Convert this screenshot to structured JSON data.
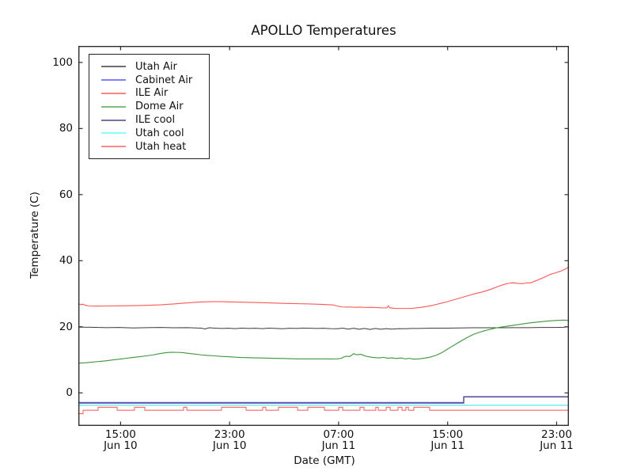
{
  "chart_data": {
    "type": "line",
    "title": "APOLLO Temperatures",
    "xlabel": "Date (GMT)",
    "ylabel": "Temperature (C)",
    "xlim_hours": [
      0,
      36
    ],
    "x_axis_origin": "Jun 10 ~12:00 GMT",
    "ylim": [
      -10,
      105
    ],
    "yticks": [
      0,
      20,
      40,
      60,
      80,
      100
    ],
    "xticks": [
      {
        "h": 3.1,
        "time": "15:00",
        "date": "Jun 10"
      },
      {
        "h": 11.1,
        "time": "23:00",
        "date": "Jun 10"
      },
      {
        "h": 19.1,
        "time": "07:00",
        "date": "Jun 11"
      },
      {
        "h": 27.1,
        "time": "15:00",
        "date": "Jun 11"
      },
      {
        "h": 35.1,
        "time": "23:00",
        "date": "Jun 11"
      }
    ],
    "grid": false,
    "legend_position": "upper left",
    "series": [
      {
        "name": "Utah Air",
        "color": "#3a3a3a",
        "swatch": "#6e6e6e",
        "width": 1.0,
        "points": [
          [
            0,
            19.9
          ],
          [
            1,
            19.85
          ],
          [
            2,
            19.75
          ],
          [
            3,
            19.8
          ],
          [
            4,
            19.65
          ],
          [
            5,
            19.75
          ],
          [
            6,
            19.8
          ],
          [
            7,
            19.7
          ],
          [
            8,
            19.75
          ],
          [
            9,
            19.6
          ],
          [
            9.3,
            19.35
          ],
          [
            9.6,
            19.7
          ],
          [
            10,
            19.6
          ],
          [
            10.5,
            19.5
          ],
          [
            11,
            19.55
          ],
          [
            11.5,
            19.45
          ],
          [
            12,
            19.6
          ],
          [
            12.5,
            19.5
          ],
          [
            13,
            19.55
          ],
          [
            13.5,
            19.45
          ],
          [
            14,
            19.6
          ],
          [
            14.5,
            19.5
          ],
          [
            15,
            19.4
          ],
          [
            15.5,
            19.55
          ],
          [
            16,
            19.5
          ],
          [
            16.5,
            19.6
          ],
          [
            17,
            19.55
          ],
          [
            17.5,
            19.5
          ],
          [
            18,
            19.55
          ],
          [
            18.5,
            19.45
          ],
          [
            19,
            19.4
          ],
          [
            19.4,
            19.6
          ],
          [
            19.8,
            19.3
          ],
          [
            20.2,
            19.55
          ],
          [
            20.6,
            19.25
          ],
          [
            21,
            19.5
          ],
          [
            21.4,
            19.2
          ],
          [
            21.8,
            19.5
          ],
          [
            22.2,
            19.25
          ],
          [
            22.6,
            19.45
          ],
          [
            23,
            19.3
          ],
          [
            23.5,
            19.45
          ],
          [
            24,
            19.4
          ],
          [
            24.5,
            19.5
          ],
          [
            25,
            19.5
          ],
          [
            26,
            19.6
          ],
          [
            27,
            19.6
          ],
          [
            28,
            19.65
          ],
          [
            29,
            19.7
          ],
          [
            30,
            19.7
          ],
          [
            31,
            19.7
          ],
          [
            32,
            19.75
          ],
          [
            33,
            19.75
          ],
          [
            34,
            19.8
          ],
          [
            35,
            19.8
          ],
          [
            35.6,
            19.85
          ],
          [
            36,
            20.0
          ]
        ]
      },
      {
        "name": "Cabinet Air",
        "color": "#6b6bff",
        "swatch": "#8080ff",
        "width": 1.2,
        "points": [
          [
            0,
            -2.9
          ],
          [
            28.28,
            -2.9
          ],
          [
            28.28,
            -1.15
          ],
          [
            36,
            -1.15
          ]
        ]
      },
      {
        "name": "ILE Air",
        "color": "#ff5757",
        "swatch": "#ff8585",
        "width": 1.1,
        "points": [
          [
            0,
            27.0
          ],
          [
            0.2,
            26.7
          ],
          [
            0.35,
            26.85
          ],
          [
            0.5,
            26.5
          ],
          [
            0.8,
            26.3
          ],
          [
            1.2,
            26.25
          ],
          [
            2,
            26.3
          ],
          [
            3,
            26.35
          ],
          [
            4,
            26.4
          ],
          [
            5,
            26.5
          ],
          [
            6,
            26.65
          ],
          [
            7,
            26.9
          ],
          [
            8,
            27.25
          ],
          [
            9,
            27.5
          ],
          [
            9.8,
            27.6
          ],
          [
            10.5,
            27.6
          ],
          [
            11,
            27.55
          ],
          [
            12,
            27.45
          ],
          [
            13,
            27.35
          ],
          [
            14,
            27.25
          ],
          [
            15,
            27.1
          ],
          [
            16,
            27.0
          ],
          [
            17,
            26.9
          ],
          [
            18,
            26.75
          ],
          [
            18.7,
            26.6
          ],
          [
            19.1,
            26.2
          ],
          [
            19.4,
            26.0
          ],
          [
            19.7,
            25.95
          ],
          [
            20,
            26.0
          ],
          [
            20.3,
            25.9
          ],
          [
            20.7,
            25.95
          ],
          [
            21,
            25.85
          ],
          [
            21.5,
            25.9
          ],
          [
            22,
            25.8
          ],
          [
            22.4,
            25.7
          ],
          [
            22.65,
            25.75
          ],
          [
            22.75,
            26.35
          ],
          [
            22.85,
            25.75
          ],
          [
            23.2,
            25.6
          ],
          [
            23.6,
            25.55
          ],
          [
            24,
            25.55
          ],
          [
            24.5,
            25.6
          ],
          [
            25,
            25.8
          ],
          [
            25.5,
            26.1
          ],
          [
            26,
            26.5
          ],
          [
            26.5,
            27.0
          ],
          [
            27,
            27.5
          ],
          [
            27.5,
            28.1
          ],
          [
            28,
            28.7
          ],
          [
            28.5,
            29.3
          ],
          [
            29,
            29.9
          ],
          [
            29.7,
            30.6
          ],
          [
            30.3,
            31.4
          ],
          [
            30.8,
            32.2
          ],
          [
            31.3,
            32.9
          ],
          [
            31.7,
            33.25
          ],
          [
            32,
            33.3
          ],
          [
            32.3,
            33.1
          ],
          [
            32.6,
            33.05
          ],
          [
            32.9,
            33.3
          ],
          [
            33.2,
            33.3
          ],
          [
            33.5,
            33.8
          ],
          [
            33.8,
            34.3
          ],
          [
            34.2,
            35.0
          ],
          [
            34.6,
            35.8
          ],
          [
            35,
            36.3
          ],
          [
            35.3,
            36.7
          ],
          [
            35.6,
            37.2
          ],
          [
            35.8,
            37.6
          ],
          [
            36,
            38.2
          ]
        ]
      },
      {
        "name": "Dome Air",
        "color": "#3c963c",
        "swatch": "#7cbf7c",
        "width": 1.1,
        "points": [
          [
            0,
            9.0
          ],
          [
            0.5,
            9.1
          ],
          [
            1,
            9.3
          ],
          [
            1.5,
            9.5
          ],
          [
            2,
            9.7
          ],
          [
            2.5,
            9.95
          ],
          [
            3,
            10.2
          ],
          [
            3.5,
            10.45
          ],
          [
            4,
            10.7
          ],
          [
            4.5,
            10.95
          ],
          [
            5,
            11.2
          ],
          [
            5.5,
            11.5
          ],
          [
            6,
            11.9
          ],
          [
            6.4,
            12.15
          ],
          [
            6.8,
            12.3
          ],
          [
            7.2,
            12.25
          ],
          [
            7.6,
            12.2
          ],
          [
            8,
            12.0
          ],
          [
            8.5,
            11.75
          ],
          [
            9,
            11.5
          ],
          [
            9.5,
            11.35
          ],
          [
            10,
            11.2
          ],
          [
            10.5,
            11.05
          ],
          [
            11,
            10.95
          ],
          [
            11.5,
            10.8
          ],
          [
            12,
            10.7
          ],
          [
            12.5,
            10.65
          ],
          [
            13,
            10.6
          ],
          [
            13.5,
            10.55
          ],
          [
            14,
            10.5
          ],
          [
            14.5,
            10.45
          ],
          [
            15,
            10.4
          ],
          [
            15.5,
            10.35
          ],
          [
            16,
            10.3
          ],
          [
            17,
            10.3
          ],
          [
            18,
            10.3
          ],
          [
            18.5,
            10.25
          ],
          [
            19,
            10.3
          ],
          [
            19.3,
            10.45
          ],
          [
            19.5,
            10.9
          ],
          [
            19.7,
            11.1
          ],
          [
            19.9,
            11.0
          ],
          [
            20.1,
            11.5
          ],
          [
            20.2,
            11.9
          ],
          [
            20.35,
            11.6
          ],
          [
            20.5,
            11.55
          ],
          [
            20.7,
            11.7
          ],
          [
            20.9,
            11.4
          ],
          [
            21.2,
            11.0
          ],
          [
            21.5,
            10.8
          ],
          [
            21.8,
            10.65
          ],
          [
            22.1,
            10.6
          ],
          [
            22.4,
            10.75
          ],
          [
            22.7,
            10.5
          ],
          [
            23,
            10.6
          ],
          [
            23.3,
            10.4
          ],
          [
            23.7,
            10.55
          ],
          [
            24,
            10.3
          ],
          [
            24.3,
            10.45
          ],
          [
            24.6,
            10.2
          ],
          [
            25,
            10.3
          ],
          [
            25.4,
            10.5
          ],
          [
            25.8,
            10.8
          ],
          [
            26.2,
            11.3
          ],
          [
            26.6,
            12.0
          ],
          [
            27,
            13.0
          ],
          [
            27.4,
            14.0
          ],
          [
            27.8,
            15.0
          ],
          [
            28.2,
            16.0
          ],
          [
            28.6,
            16.9
          ],
          [
            29,
            17.7
          ],
          [
            29.4,
            18.3
          ],
          [
            29.8,
            18.8
          ],
          [
            30.2,
            19.2
          ],
          [
            30.6,
            19.6
          ],
          [
            31,
            19.9
          ],
          [
            31.5,
            20.2
          ],
          [
            32,
            20.5
          ],
          [
            32.5,
            20.8
          ],
          [
            33,
            21.1
          ],
          [
            33.5,
            21.35
          ],
          [
            34,
            21.55
          ],
          [
            34.5,
            21.75
          ],
          [
            35,
            21.9
          ],
          [
            35.5,
            22.0
          ],
          [
            35.8,
            22.0
          ],
          [
            36,
            21.8
          ]
        ]
      },
      {
        "name": "ILE cool",
        "color": "#3b3b80",
        "swatch": "#7575a8",
        "width": 1.2,
        "points": [
          [
            0,
            -3.1
          ],
          [
            28.28,
            -3.1
          ],
          [
            28.28,
            -1.2
          ],
          [
            36,
            -1.2
          ]
        ]
      },
      {
        "name": "Utah cool",
        "color": "#82eef2",
        "swatch": "#8dfcff",
        "width": 1.6,
        "points": [
          [
            0,
            -3.75
          ],
          [
            36,
            -3.75
          ]
        ]
      },
      {
        "name": "Utah heat",
        "color": "#ff6464",
        "swatch": "#ff8a8a",
        "width": 1.1,
        "baseline": -5.25,
        "pulse_high": -4.35,
        "start_segment": [
          [
            0,
            -6.3
          ],
          [
            0.35,
            -6.3
          ]
        ],
        "pulses": [
          [
            1.45,
            2.85
          ],
          [
            4.12,
            4.88
          ],
          [
            7.72,
            7.96
          ],
          [
            10.51,
            12.31
          ],
          [
            13.53,
            13.76
          ],
          [
            14.69,
            16.09
          ],
          [
            16.84,
            18.06
          ],
          [
            19.11,
            19.4
          ],
          [
            20.67,
            20.96
          ],
          [
            21.83,
            22.01
          ],
          [
            22.59,
            22.88
          ],
          [
            23.46,
            23.75
          ],
          [
            24.04,
            24.22
          ],
          [
            24.62,
            25.78
          ]
        ]
      }
    ]
  }
}
